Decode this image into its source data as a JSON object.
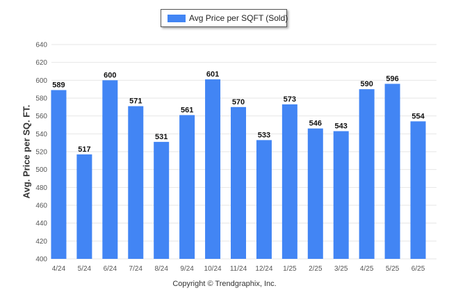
{
  "legend": {
    "label": "Avg Price per SQFT (Sold)"
  },
  "footer": {
    "text": "Copyright © Trendgraphix, Inc."
  },
  "colors": {
    "bar": "#4285f4",
    "grid": "#e6e6e6",
    "axis_text": "#555555",
    "value_text": "#111111"
  },
  "chart_data": {
    "type": "bar",
    "title": "",
    "xlabel": "",
    "ylabel": "Avg. Price per SQ. FT.",
    "series": [
      {
        "name": "Avg Price per SQFT (Sold)",
        "values": [
          589,
          517,
          600,
          571,
          531,
          561,
          601,
          570,
          533,
          573,
          546,
          543,
          590,
          596,
          554
        ]
      }
    ],
    "categories": [
      "4/24",
      "5/24",
      "6/24",
      "7/24",
      "8/24",
      "9/24",
      "10/24",
      "11/24",
      "12/24",
      "1/25",
      "2/25",
      "3/25",
      "4/25",
      "5/25",
      "6/25"
    ],
    "ylim": [
      400,
      640
    ],
    "yticks": [
      400,
      420,
      440,
      460,
      480,
      500,
      520,
      540,
      560,
      580,
      600,
      620,
      640
    ],
    "grid": true,
    "legend_position": "top-center",
    "data_labels": true
  }
}
